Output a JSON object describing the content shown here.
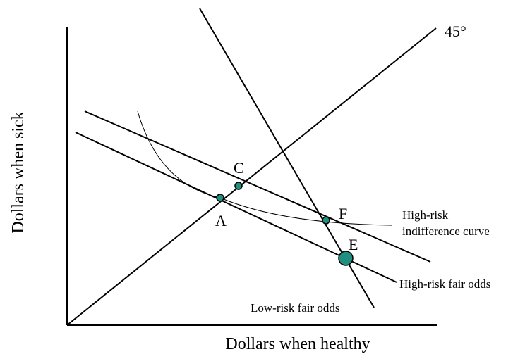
{
  "axes": {
    "x_label": "Dollars when healthy",
    "y_label": "Dollars when sick"
  },
  "lines": [
    {
      "label": "45°"
    },
    {
      "label": "Low-risk fair odds"
    },
    {
      "label": "High-risk fair odds"
    }
  ],
  "curve": {
    "label_lines": [
      "High-risk",
      "indifference curve"
    ]
  },
  "points": [
    {
      "label": "A"
    },
    {
      "label": "C"
    },
    {
      "label": "F"
    },
    {
      "label": "E"
    }
  ]
}
